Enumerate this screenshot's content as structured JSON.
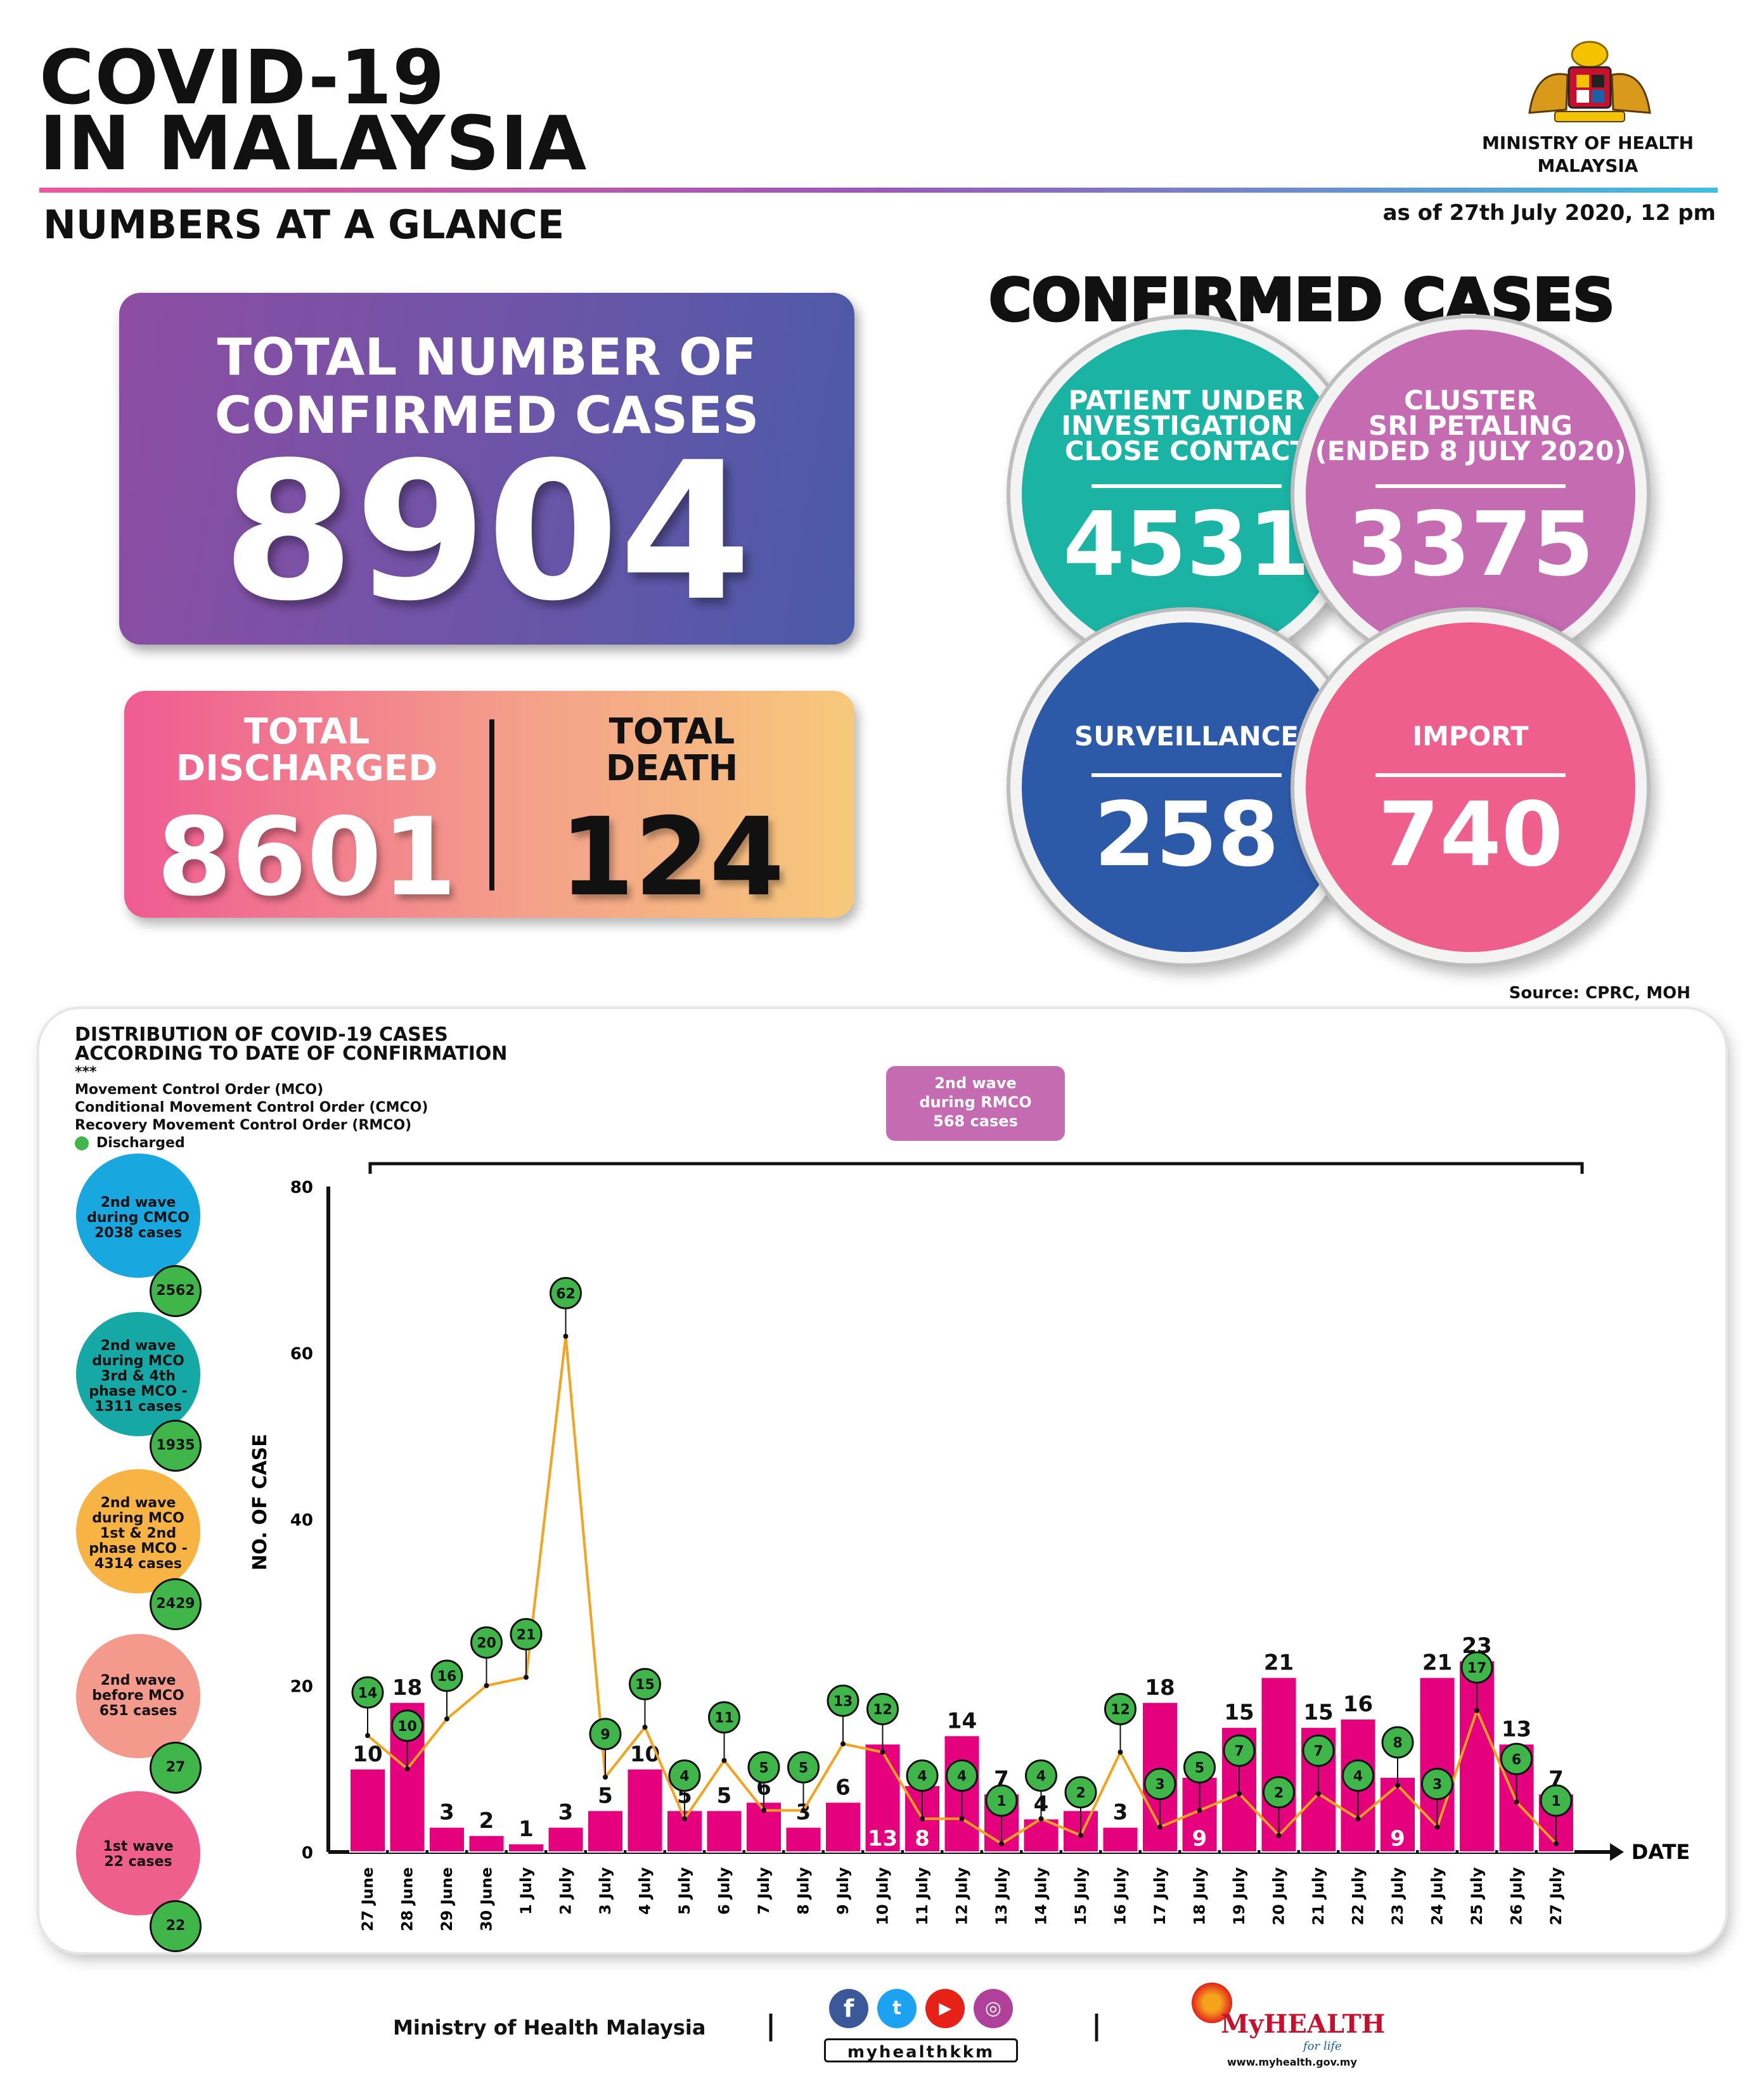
{
  "header": {
    "title_line1": "COVID-19",
    "title_line2": "IN MALAYSIA",
    "subtitle": "NUMBERS AT A GLANCE",
    "ministry_line1": "MINISTRY OF HEALTH",
    "ministry_line2": "MALAYSIA",
    "as_of": "as of 27th July 2020, 12 pm"
  },
  "total": {
    "label_line1": "TOTAL NUMBER OF",
    "label_line2": "CONFIRMED CASES",
    "value": "8904"
  },
  "discharged": {
    "label_line1": "TOTAL",
    "label_line2": "DISCHARGED",
    "value": "8601"
  },
  "death": {
    "label_line1": "TOTAL",
    "label_line2": "DEATH",
    "value": "124"
  },
  "confirmed": {
    "title": "CONFIRMED CASES",
    "pui": {
      "label_line1": "PATIENT UNDER",
      "label_line2": "INVESTIGATION /",
      "label_line3": "CLOSE CONTACT",
      "value": "4531",
      "color": "#1bb3a4"
    },
    "cluster": {
      "label_line1": "CLUSTER",
      "label_line2": "SRI PETALING",
      "label_line3": "(ENDED 8 JULY 2020)",
      "value": "3375",
      "color": "#c56bb2"
    },
    "surveillance": {
      "label": "SURVEILLANCE",
      "value": "258",
      "color": "#2d5aa8"
    },
    "import": {
      "label": "IMPORT",
      "value": "740",
      "color": "#ee5f8e"
    }
  },
  "source": "Source: CPRC, MOH",
  "distribution": {
    "title_line1": "DISTRIBUTION OF COVID-19 CASES",
    "title_line2": "ACCORDING TO DATE OF CONFIRMATION",
    "stars": "***",
    "legend_mco": "Movement Control Order (MCO)",
    "legend_cmco": "Conditional Movement Control Order (CMCO)",
    "legend_rmco": "Recovery Movement Control Order (RMCO)",
    "legend_discharged": "Discharged",
    "rmco_box_line1": "2nd wave",
    "rmco_box_line2": "during RMCO",
    "rmco_box_line3": "568 cases",
    "waves": [
      {
        "line1": "2nd wave",
        "line2": "during CMCO",
        "line3": "2038 cases",
        "line4": "",
        "badge": "2562",
        "color": "#19a7e0"
      },
      {
        "line1": "2nd wave",
        "line2": "during MCO",
        "line3": "3rd & 4th",
        "line4": "phase MCO -",
        "line5": "1311 cases",
        "badge": "1935",
        "color": "#16a8a4"
      },
      {
        "line1": "2nd wave",
        "line2": "during MCO",
        "line3": "1st & 2nd",
        "line4": "phase MCO -",
        "line5": "4314 cases",
        "badge": "2429",
        "color": "#f7b343"
      },
      {
        "line1": "2nd wave",
        "line2": "before MCO",
        "line3": "651 cases",
        "badge": "27",
        "color": "#f49a8c"
      },
      {
        "line1": "1st wave",
        "line2": "22 cases",
        "badge": "22",
        "color": "#ee5f8e"
      }
    ]
  },
  "chart_data": {
    "type": "bar",
    "ylabel": "NO. OF CASE",
    "xlabel": "DATE",
    "ylim": [
      0,
      80
    ],
    "yticks": [
      0,
      20,
      40,
      60,
      80
    ],
    "categories": [
      "27 June",
      "28 June",
      "29 June",
      "30 June",
      "1 July",
      "2 July",
      "3 July",
      "4 July",
      "5 July",
      "6 July",
      "7 July",
      "8 July",
      "9 July",
      "10 July",
      "11 July",
      "12 July",
      "13 July",
      "14 July",
      "15 July",
      "16 July",
      "17 July",
      "18 July",
      "19 July",
      "20 July",
      "21 July",
      "22 July",
      "23 July",
      "24 July",
      "25 July",
      "26 July",
      "27 July"
    ],
    "series": [
      {
        "values": [
          10,
          18,
          3,
          2,
          1,
          3,
          5,
          10,
          5,
          5,
          6,
          3,
          6,
          13,
          8,
          14,
          7,
          4,
          5,
          3,
          18,
          9,
          15,
          21,
          15,
          16,
          9,
          21,
          23,
          13,
          7
        ],
        "color": "#e5007e"
      },
      {
        "name": "Discharged",
        "values": [
          14,
          10,
          16,
          20,
          21,
          62,
          9,
          15,
          4,
          11,
          5,
          5,
          13,
          12,
          4,
          4,
          1,
          4,
          2,
          12,
          3,
          5,
          7,
          2,
          7,
          4,
          8,
          3,
          17,
          6,
          1
        ],
        "color": "#3fb54a",
        "line_color": "#f5a21c"
      }
    ]
  },
  "footer": {
    "ministry": "Ministry of Health Malaysia",
    "separator": "|",
    "handle": "myhealthkkm",
    "brand": "MyHEALTH",
    "brand_tag": "for life",
    "url": "www.myhealth.gov.my"
  }
}
